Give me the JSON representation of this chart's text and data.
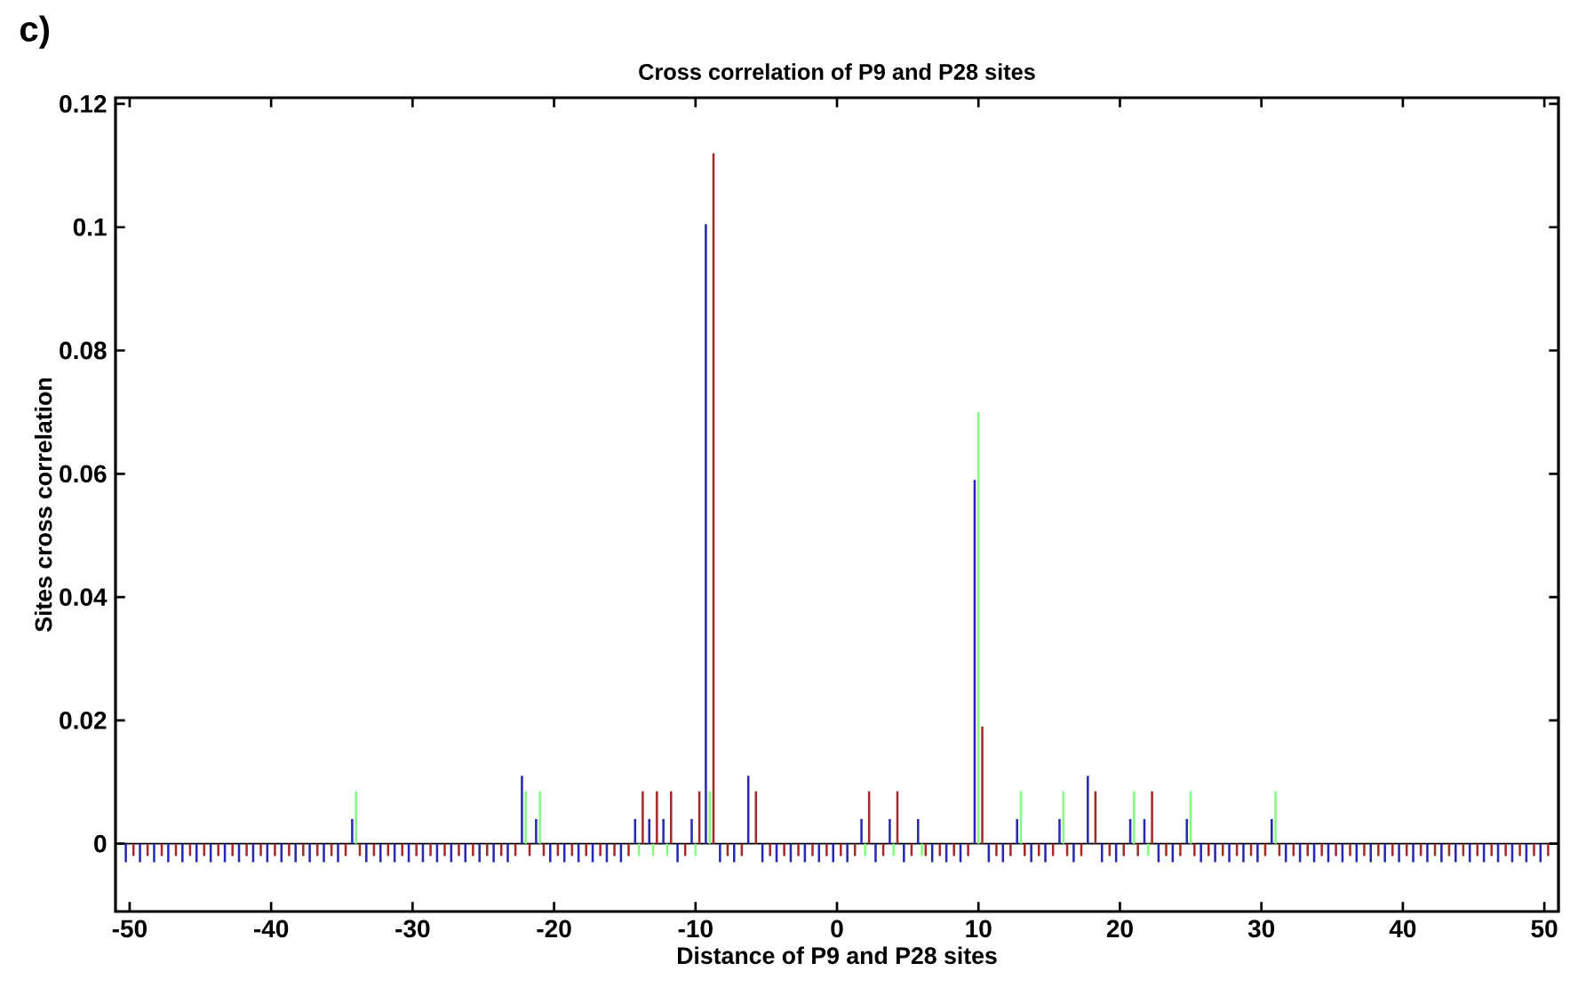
{
  "chart_data": {
    "type": "bar",
    "title": "Cross correlation of P9 and P28 sites",
    "xlabel": "Distance of P9 and P28 sites",
    "ylabel": "Sites cross correlation",
    "annotations": [
      "c)"
    ],
    "x": [
      -50,
      -49,
      -48,
      -47,
      -46,
      -45,
      -44,
      -43,
      -42,
      -41,
      -40,
      -39,
      -38,
      -37,
      -36,
      -35,
      -34,
      -33,
      -32,
      -31,
      -30,
      -29,
      -28,
      -27,
      -26,
      -25,
      -24,
      -23,
      -22,
      -21,
      -20,
      -19,
      -18,
      -17,
      -16,
      -15,
      -14,
      -13,
      -12,
      -11,
      -10,
      -9,
      -8,
      -7,
      -6,
      -5,
      -4,
      -3,
      -2,
      -1,
      0,
      1,
      2,
      3,
      4,
      5,
      6,
      7,
      8,
      9,
      10,
      11,
      12,
      13,
      14,
      15,
      16,
      17,
      18,
      19,
      20,
      21,
      22,
      23,
      24,
      25,
      26,
      27,
      28,
      29,
      30,
      31,
      32,
      33,
      34,
      35,
      36,
      37,
      38,
      39,
      40,
      41,
      42,
      43,
      44,
      45,
      46,
      47,
      48,
      49,
      50
    ],
    "series": [
      {
        "color": "#2828b4",
        "values": [
          -0.003,
          -0.003,
          -0.003,
          -0.003,
          -0.003,
          -0.003,
          -0.003,
          -0.003,
          -0.003,
          -0.003,
          -0.003,
          -0.003,
          -0.003,
          -0.003,
          -0.003,
          -0.003,
          0.004,
          -0.003,
          -0.003,
          -0.003,
          -0.003,
          -0.003,
          -0.003,
          -0.003,
          -0.003,
          -0.003,
          -0.003,
          -0.003,
          0.011,
          0.004,
          -0.003,
          -0.003,
          -0.003,
          -0.003,
          -0.003,
          -0.003,
          0.004,
          0.004,
          0.004,
          -0.003,
          0.004,
          0.1005,
          -0.003,
          -0.003,
          0.011,
          -0.003,
          -0.003,
          -0.003,
          -0.003,
          -0.003,
          -0.003,
          -0.003,
          0.004,
          -0.003,
          0.004,
          -0.003,
          0.004,
          -0.003,
          -0.003,
          -0.003,
          0.059,
          -0.003,
          -0.003,
          0.004,
          -0.003,
          -0.003,
          0.004,
          -0.003,
          0.011,
          -0.003,
          -0.003,
          0.004,
          0.004,
          -0.003,
          -0.003,
          0.004,
          -0.003,
          -0.003,
          -0.003,
          -0.003,
          -0.003,
          0.004,
          -0.003,
          -0.003,
          -0.003,
          -0.003,
          -0.003,
          -0.003,
          -0.003,
          -0.003,
          -0.003,
          -0.003,
          -0.003,
          -0.003,
          -0.003,
          -0.003,
          -0.003,
          -0.003,
          -0.003,
          -0.003,
          -0.003
        ]
      },
      {
        "color": "#80ff80",
        "values": [
          0,
          0,
          0,
          0,
          0,
          0,
          0,
          0,
          0,
          0,
          0,
          0,
          0,
          0,
          0,
          0,
          0.0085,
          0,
          0,
          0,
          0,
          0,
          0,
          0,
          0,
          0,
          0,
          0,
          0.0085,
          0.0085,
          0,
          0,
          0,
          0,
          0,
          0,
          -0.002,
          -0.002,
          -0.002,
          0,
          -0.002,
          0.0085,
          0,
          0,
          0,
          0,
          0,
          0,
          0,
          0,
          0,
          0,
          -0.002,
          0,
          -0.002,
          0,
          -0.002,
          0,
          0,
          0,
          0.07,
          0,
          0,
          0.0085,
          0,
          0,
          0.0085,
          0,
          0,
          0,
          0,
          0.0085,
          -0.002,
          0,
          0,
          0.0085,
          0,
          0,
          0,
          0,
          0,
          0.0085,
          0,
          0,
          0,
          0,
          0,
          0,
          0,
          0,
          0,
          0,
          0,
          0,
          0,
          0,
          0,
          0,
          0,
          0,
          0
        ]
      },
      {
        "color": "#a52a2a",
        "values": [
          -0.002,
          -0.002,
          -0.002,
          -0.002,
          -0.002,
          -0.002,
          -0.002,
          -0.002,
          -0.002,
          -0.002,
          -0.002,
          -0.002,
          -0.002,
          -0.002,
          -0.002,
          -0.002,
          -0.002,
          -0.002,
          -0.002,
          -0.002,
          -0.002,
          -0.002,
          -0.002,
          -0.002,
          -0.002,
          -0.002,
          -0.002,
          -0.002,
          -0.002,
          -0.002,
          -0.002,
          -0.002,
          -0.002,
          -0.002,
          -0.002,
          -0.002,
          0.0085,
          0.0085,
          0.0085,
          -0.002,
          0.0085,
          0.112,
          -0.002,
          -0.002,
          0.0085,
          -0.002,
          -0.002,
          -0.002,
          -0.002,
          -0.002,
          -0.002,
          -0.002,
          0.0085,
          -0.002,
          0.0085,
          -0.002,
          -0.002,
          -0.002,
          -0.002,
          -0.002,
          0.019,
          -0.002,
          -0.002,
          -0.002,
          -0.002,
          -0.002,
          -0.002,
          -0.002,
          0.0085,
          -0.002,
          -0.002,
          -0.002,
          0.0085,
          -0.002,
          -0.002,
          -0.002,
          -0.002,
          -0.002,
          -0.002,
          -0.002,
          -0.002,
          -0.002,
          -0.002,
          -0.002,
          -0.002,
          -0.002,
          -0.002,
          -0.002,
          -0.002,
          -0.002,
          -0.002,
          -0.002,
          -0.002,
          -0.002,
          -0.002,
          -0.002,
          -0.002,
          -0.002,
          -0.002,
          -0.002,
          -0.002
        ]
      }
    ],
    "xlim": [
      -51,
      51
    ],
    "xticks": [
      -50,
      -40,
      -30,
      -20,
      -10,
      0,
      10,
      20,
      30,
      40,
      50
    ],
    "ylim": [
      -0.011,
      0.121
    ],
    "yticks": [
      0,
      0.02,
      0.04,
      0.06,
      0.08,
      0.1,
      0.12
    ]
  }
}
